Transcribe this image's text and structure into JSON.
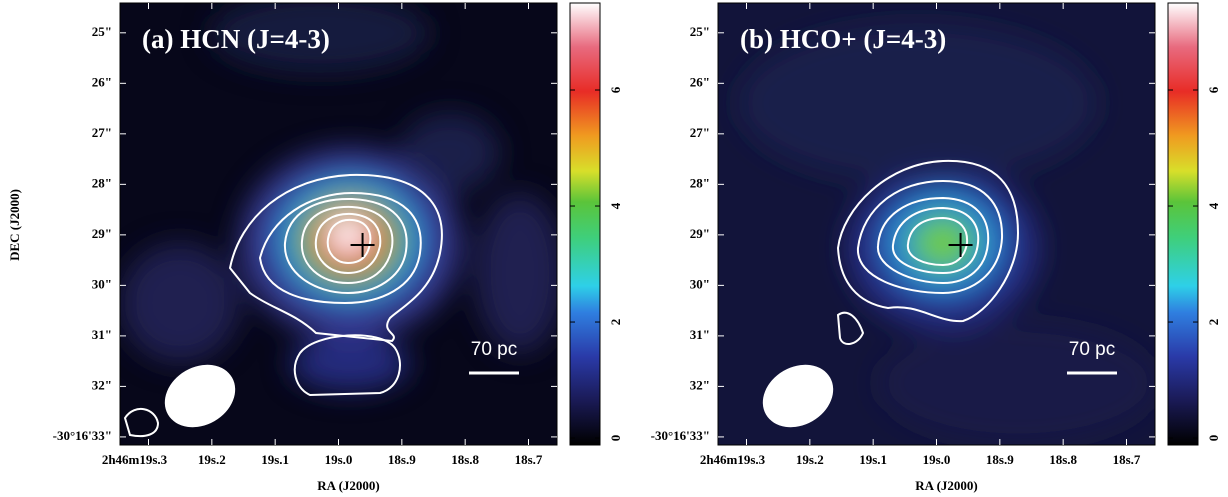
{
  "chart_data": [
    {
      "type": "image",
      "title": "(a) HCN (J=4-3)",
      "xlabel": "RA (J2000)",
      "ylabel": "DEC (J2000)",
      "xlim": [
        19.345,
        18.655
      ],
      "xticks": [
        {
          "value": 19.3,
          "label": "2h46m19s.3"
        },
        {
          "value": 19.2,
          "label": "19s.2"
        },
        {
          "value": 19.1,
          "label": "19s.1"
        },
        {
          "value": 19.0,
          "label": "19s.0"
        },
        {
          "value": 18.9,
          "label": "18s.9"
        },
        {
          "value": 18.8,
          "label": "18s.8"
        },
        {
          "value": 18.7,
          "label": "18s.7"
        }
      ],
      "ylim": [
        24.41,
        33.16
      ],
      "yticks": [
        {
          "value": 25,
          "label": "25\""
        },
        {
          "value": 26,
          "label": "26\""
        },
        {
          "value": 27,
          "label": "27\""
        },
        {
          "value": 28,
          "label": "28\""
        },
        {
          "value": 29,
          "label": "29\""
        },
        {
          "value": 30,
          "label": "30\""
        },
        {
          "value": 31,
          "label": "31\""
        },
        {
          "value": 32,
          "label": "32\""
        },
        {
          "value": 33,
          "label": "-30°16'33\""
        }
      ],
      "colorbar_lim": [
        -0.12,
        7.5
      ],
      "colorbar_ticks": [
        0,
        2,
        4,
        6
      ],
      "scale_label": "70 pc"
    },
    {
      "type": "image",
      "title": "(b) HCO+ (J=4-3)",
      "xlabel": "RA (J2000)",
      "xlim": [
        19.345,
        18.655
      ],
      "xticks": [
        {
          "value": 19.3,
          "label": "2h46m19s.3"
        },
        {
          "value": 19.2,
          "label": "19s.2"
        },
        {
          "value": 19.1,
          "label": "19s.1"
        },
        {
          "value": 19.0,
          "label": "19s.0"
        },
        {
          "value": 18.9,
          "label": "18s.9"
        },
        {
          "value": 18.8,
          "label": "18s.8"
        },
        {
          "value": 18.7,
          "label": "18s.7"
        }
      ],
      "ylim": [
        24.41,
        33.16
      ],
      "yticks": [
        {
          "value": 25,
          "label": "25\""
        },
        {
          "value": 26,
          "label": "26\""
        },
        {
          "value": 27,
          "label": "27\""
        },
        {
          "value": 28,
          "label": "28\""
        },
        {
          "value": 29,
          "label": "29\""
        },
        {
          "value": 30,
          "label": "30\""
        },
        {
          "value": 31,
          "label": "31\""
        },
        {
          "value": 32,
          "label": "32\""
        },
        {
          "value": 33,
          "label": "-30°16'33\""
        }
      ],
      "colorbar_lim": [
        -0.12,
        7.5
      ],
      "colorbar_ticks": [
        0,
        2,
        4,
        6
      ],
      "scale_label": "70 pc"
    }
  ]
}
